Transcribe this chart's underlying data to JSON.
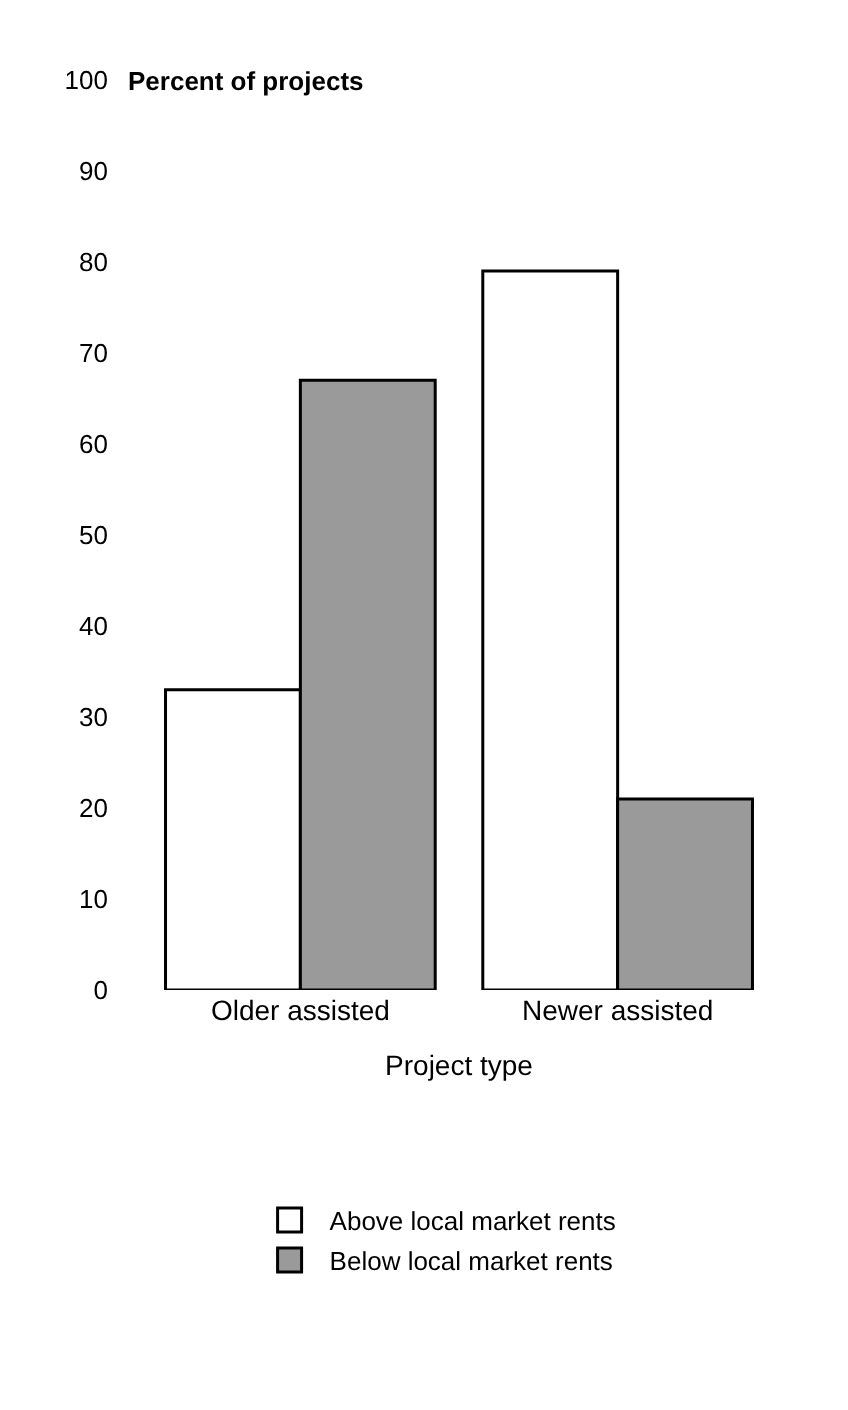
{
  "chart_data": {
    "type": "bar",
    "ylabel": "Percent of projects",
    "xlabel": "Project type",
    "categories": [
      "Older assisted",
      "Newer assisted"
    ],
    "series": [
      {
        "name": "Above local market rents",
        "color": "#ffffff",
        "values": [
          33,
          79
        ]
      },
      {
        "name": "Below local market rents",
        "color": "#9a9a9a",
        "values": [
          67,
          21
        ]
      }
    ],
    "ylim": [
      0,
      100
    ],
    "yticks": [
      0,
      10,
      20,
      30,
      40,
      50,
      60,
      70,
      80,
      90,
      100
    ],
    "legend": "bottom"
  }
}
